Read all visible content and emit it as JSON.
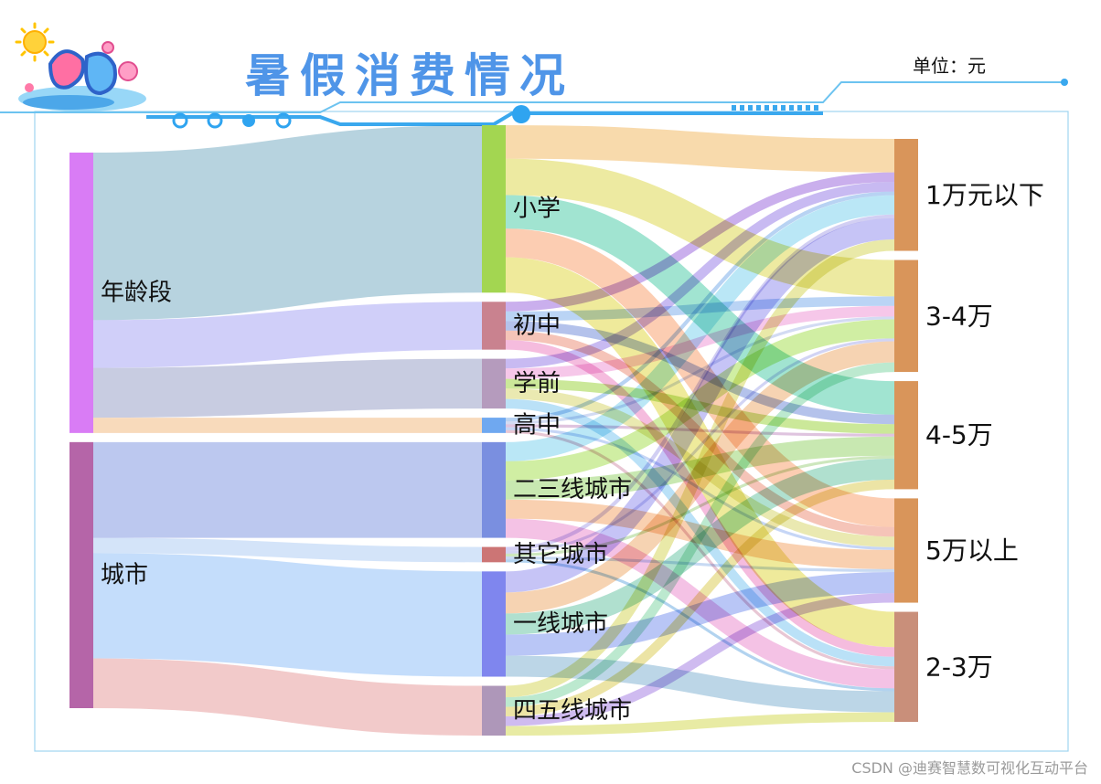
{
  "header": {
    "title": "暑假消费情况",
    "unit_label": "单位：元"
  },
  "watermark": "CSDN @迪赛智慧数可视化互动平台",
  "chart_data": {
    "type": "sankey",
    "title": "暑假消费情况",
    "unit": "单位：元",
    "columns": [
      [
        "年龄段",
        "城市"
      ],
      [
        "小学",
        "初中",
        "学前",
        "高中",
        "二三线城市",
        "其它城市",
        "一线城市",
        "四五线城市"
      ],
      [
        "1万元以下",
        "3-4万",
        "4-5万",
        "5万以上",
        "2-3万"
      ]
    ],
    "nodes": [
      {
        "name": "年龄段",
        "color": "#d97cf5"
      },
      {
        "name": "城市",
        "color": "#b565a8"
      },
      {
        "name": "小学",
        "color": "#a3d651"
      },
      {
        "name": "初中",
        "color": "#c9828f"
      },
      {
        "name": "学前",
        "color": "#b59bbd"
      },
      {
        "name": "高中",
        "color": "#6fa8f0"
      },
      {
        "name": "二三线城市",
        "color": "#7a8fe0"
      },
      {
        "name": "其它城市",
        "color": "#cc7575"
      },
      {
        "name": "一线城市",
        "color": "#7f86ee"
      },
      {
        "name": "四五线城市",
        "color": "#ae97b9"
      },
      {
        "name": "1万元以下",
        "color": "#d9955a"
      },
      {
        "name": "3-4万",
        "color": "#d9955a"
      },
      {
        "name": "4-5万",
        "color": "#d9955a"
      },
      {
        "name": "5万以上",
        "color": "#d9955a"
      },
      {
        "name": "2-3万",
        "color": "#c98f7a"
      }
    ],
    "links": [
      {
        "source": "年龄段",
        "target": "小学",
        "value": 175,
        "color": "#a3c7d6"
      },
      {
        "source": "年龄段",
        "target": "初中",
        "value": 50,
        "color": "#c3c2f7"
      },
      {
        "source": "年龄段",
        "target": "学前",
        "value": 52,
        "color": "#b8bed8"
      },
      {
        "source": "年龄段",
        "target": "高中",
        "value": 16,
        "color": "#f6cfa8"
      },
      {
        "source": "城市",
        "target": "二三线城市",
        "value": 100,
        "color": "#a9b8ea"
      },
      {
        "source": "城市",
        "target": "其它城市",
        "value": 16,
        "color": "#c8dcf7"
      },
      {
        "source": "城市",
        "target": "一线城市",
        "value": 110,
        "color": "#b3d3fa"
      },
      {
        "source": "城市",
        "target": "四五线城市",
        "value": 52,
        "color": "#eebbbb"
      },
      {
        "source": "小学",
        "target": "1万元以下",
        "value": 35,
        "color": "#f6cf95"
      },
      {
        "source": "小学",
        "target": "3-4万",
        "value": 38,
        "color": "#e8e486"
      },
      {
        "source": "小学",
        "target": "4-5万",
        "value": 35,
        "color": "#87dcc4"
      },
      {
        "source": "小学",
        "target": "5万以上",
        "value": 30,
        "color": "#fbbf9c"
      },
      {
        "source": "小学",
        "target": "2-3万",
        "value": 37,
        "color": "#eae47f"
      },
      {
        "source": "初中",
        "target": "1万元以下",
        "value": 10,
        "color": "#bb99e8"
      },
      {
        "source": "初中",
        "target": "3-4万",
        "value": 10,
        "color": "#a7c8f2"
      },
      {
        "source": "初中",
        "target": "4-5万",
        "value": 10,
        "color": "#9fb1e6"
      },
      {
        "source": "初中",
        "target": "5万以上",
        "value": 10,
        "color": "#f2b3a4"
      },
      {
        "source": "初中",
        "target": "2-3万",
        "value": 10,
        "color": "#f2a9d5"
      },
      {
        "source": "学前",
        "target": "1万元以下",
        "value": 10,
        "color": "#b9a7ee"
      },
      {
        "source": "学前",
        "target": "3-4万",
        "value": 11,
        "color": "#f3b7e3"
      },
      {
        "source": "学前",
        "target": "4-5万",
        "value": 10,
        "color": "#bde27c"
      },
      {
        "source": "学前",
        "target": "5万以上",
        "value": 11,
        "color": "#e4e39b"
      },
      {
        "source": "学前",
        "target": "2-3万",
        "value": 10,
        "color": "#a7d8f5"
      },
      {
        "source": "高中",
        "target": "1万元以下",
        "value": 4,
        "color": "#a4c6f0"
      },
      {
        "source": "高中",
        "target": "3-4万",
        "value": 3,
        "color": "#c7d1ef"
      },
      {
        "source": "高中",
        "target": "4-5万",
        "value": 3,
        "color": "#d6b4d6"
      },
      {
        "source": "高中",
        "target": "5万以上",
        "value": 3,
        "color": "#b6cbf4"
      },
      {
        "source": "高中",
        "target": "2-3万",
        "value": 3,
        "color": "#e1b7c8"
      },
      {
        "source": "二三线城市",
        "target": "1万元以下",
        "value": 20,
        "color": "#a7e0f4"
      },
      {
        "source": "二三线城市",
        "target": "3-4万",
        "value": 20,
        "color": "#c3e989"
      },
      {
        "source": "二三线城市",
        "target": "4-5万",
        "value": 20,
        "color": "#b8e29b"
      },
      {
        "source": "二三线城市",
        "target": "5万以上",
        "value": 20,
        "color": "#f7c39a"
      },
      {
        "source": "二三线城市",
        "target": "2-3万",
        "value": 20,
        "color": "#f1b1de"
      },
      {
        "source": "其它城市",
        "target": "1万元以下",
        "value": 4,
        "color": "#c5c1ef"
      },
      {
        "source": "其它城市",
        "target": "3-4万",
        "value": 3,
        "color": "#c5c8f1"
      },
      {
        "source": "其它城市",
        "target": "4-5万",
        "value": 3,
        "color": "#bfe0aa"
      },
      {
        "source": "其它城市",
        "target": "5万以上",
        "value": 3,
        "color": "#b9d0f0"
      },
      {
        "source": "其它城市",
        "target": "2-3万",
        "value": 3,
        "color": "#9cc6ea"
      },
      {
        "source": "一线城市",
        "target": "1万元以下",
        "value": 22,
        "color": "#b6b3f3"
      },
      {
        "source": "一线城市",
        "target": "3-4万",
        "value": 22,
        "color": "#f4c79c"
      },
      {
        "source": "一线城市",
        "target": "4-5万",
        "value": 22,
        "color": "#9ad7c2"
      },
      {
        "source": "一线城市",
        "target": "5万以上",
        "value": 22,
        "color": "#a5b6f4"
      },
      {
        "source": "一线城市",
        "target": "2-3万",
        "value": 22,
        "color": "#a9cbe0"
      },
      {
        "source": "四五线城市",
        "target": "1万元以下",
        "value": 12,
        "color": "#e3e38f"
      },
      {
        "source": "四五线城市",
        "target": "3-4万",
        "value": 10,
        "color": "#a9e3c1"
      },
      {
        "source": "四五线城市",
        "target": "4-5万",
        "value": 10,
        "color": "#e7dc8c"
      },
      {
        "source": "四五线城市",
        "target": "5万以上",
        "value": 10,
        "color": "#c1a8ec"
      },
      {
        "source": "四五线城市",
        "target": "2-3万",
        "value": 10,
        "color": "#e2e58a"
      }
    ]
  }
}
